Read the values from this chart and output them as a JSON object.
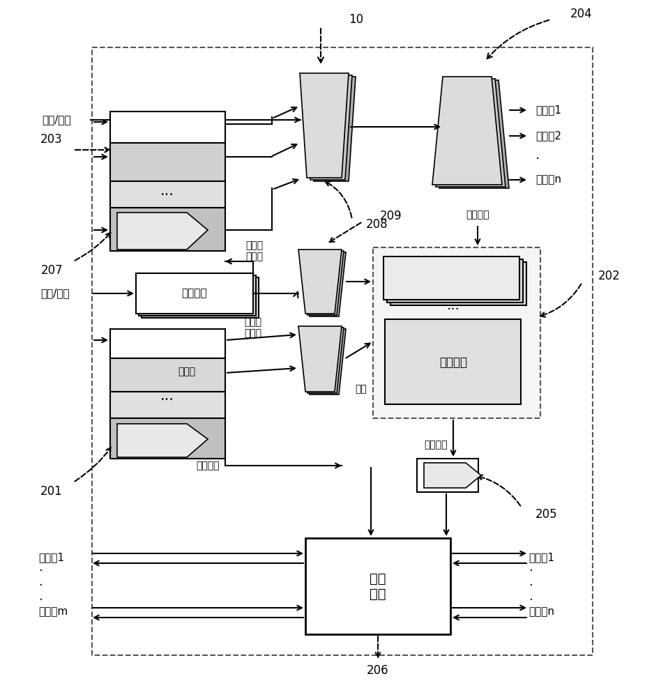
{
  "bg_color": "#ffffff",
  "line_color": "#000000",
  "box_fill": "#e8e8e8",
  "labels": {
    "addr_ctrl": "地址/控制",
    "addr_req": "地址/申请",
    "master1": "主设备1",
    "master_dots": "·",
    "master_m": "主设备m",
    "slave1_top": "从设备1",
    "slave2_top": "从设备2",
    "slave_dots_top": "·",
    "slaven_top": "从设备n",
    "slave1_bot": "从设备1",
    "slave_dots_bot": "·",
    "slaven_bot": "从设备n",
    "addr_decode": "地址译码",
    "arbiters": "仲裁器组",
    "interconnect": "互联\n网络",
    "arb_result1": "仲裁结果",
    "arb_result2": "仲裁结果",
    "queue_empty": "队列空",
    "chip_sel": "片选信号",
    "imm_req": "即时申\n请向量",
    "queue_req": "队列申\n请向量",
    "grant": "授权",
    "label_10": "10",
    "label_201": "201",
    "label_202": "202",
    "label_203": "203",
    "label_204": "204",
    "label_205": "205",
    "label_206": "206",
    "label_207": "207",
    "label_208": "208",
    "label_209": "209"
  }
}
